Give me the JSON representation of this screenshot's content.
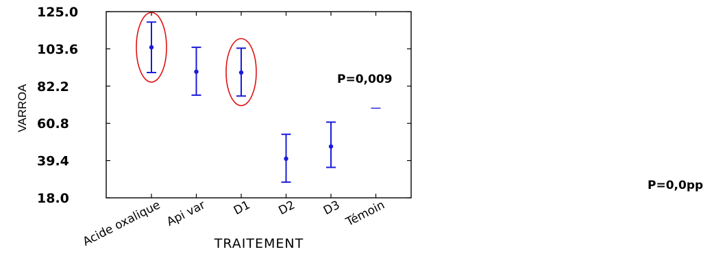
{
  "chart_data": {
    "type": "scatter",
    "xlabel": "TRAITEMENT",
    "ylabel": "VARROA",
    "ylim": [
      18.0,
      125.0
    ],
    "yticks": [
      "125.0",
      "103.6",
      "82.2",
      "60.8",
      "39.4",
      "18.0"
    ],
    "categories": [
      "Acide oxalique",
      "Api var",
      "D1",
      "D2",
      "D3",
      "Témoin"
    ],
    "series": [
      {
        "means": [
          104.5,
          90.5,
          90.0,
          40.5,
          47.5,
          69.5
        ],
        "lower": [
          90.0,
          77.0,
          76.5,
          27.0,
          35.5,
          69.5
        ],
        "upper": [
          119.0,
          104.5,
          104.0,
          54.5,
          61.5,
          69.5
        ]
      }
    ],
    "highlighted": [
      "Acide oxalique",
      "D1"
    ],
    "point_color": "#1a1adb",
    "highlight_color": "#e01010",
    "annotations": [
      "P=0,009",
      "P=0,0pp"
    ]
  }
}
